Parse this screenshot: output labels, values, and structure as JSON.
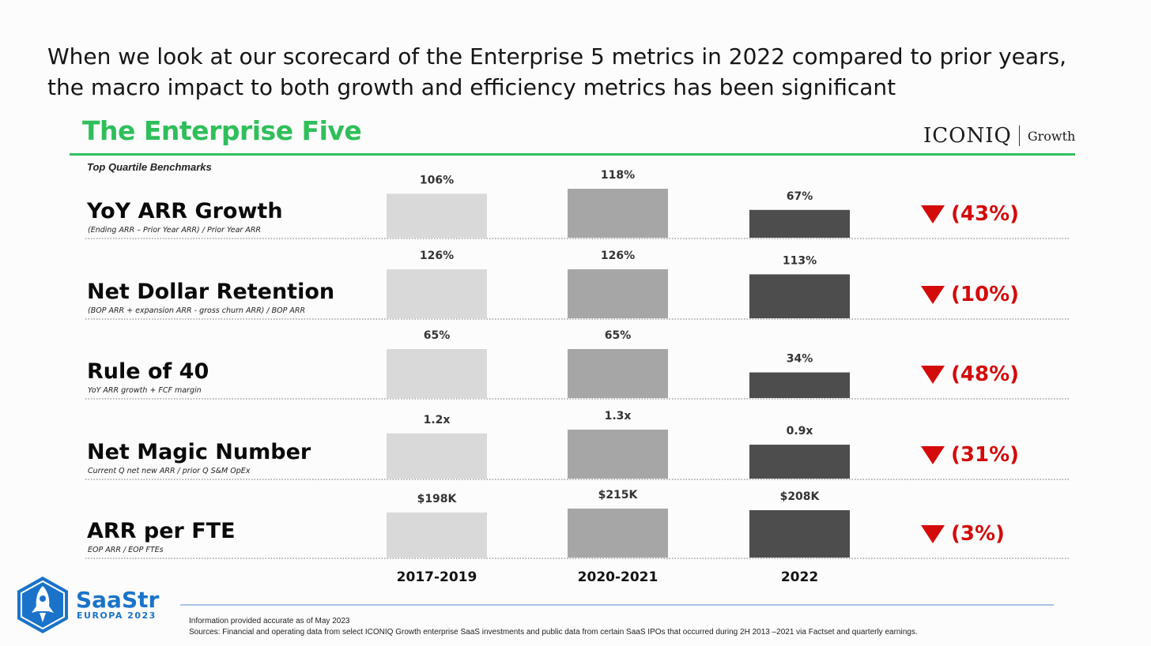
{
  "headline": {
    "line1": "When we look at our scorecard of the Enterprise 5 metrics in 2022 compared to prior years,",
    "line2": "the macro impact to both growth and efficiency metrics has been significant"
  },
  "section_title": "The Enterprise Five",
  "brand": {
    "name": "ICONIQ",
    "sub": "Growth"
  },
  "benchmark_label": "Top Quartile Benchmarks",
  "colors": {
    "title_green": "#2fbf5a",
    "period_colors": [
      "#d9d9d9",
      "#a6a6a6",
      "#4d4d4d"
    ],
    "change_red": "#d40b0b",
    "saastr_blue": "#1a73c9"
  },
  "chart_data": {
    "type": "bar",
    "title": "The Enterprise Five",
    "subtitle": "Top Quartile Benchmarks",
    "categories": [
      "2017-2019",
      "2020-2021",
      "2022"
    ],
    "metrics": [
      {
        "name": "YoY ARR Growth",
        "formula": "(Ending ARR – Prior Year ARR) / Prior Year ARR",
        "values": [
          106,
          118,
          67
        ],
        "labels": [
          "106%",
          "118%",
          "67%"
        ],
        "change": "(43%)"
      },
      {
        "name": "Net Dollar Retention",
        "formula": "(BOP ARR + expansion ARR - gross churn ARR) / BOP ARR",
        "values": [
          126,
          126,
          113
        ],
        "labels": [
          "126%",
          "126%",
          "113%"
        ],
        "change": "(10%)"
      },
      {
        "name": "Rule of 40",
        "formula": "YoY ARR growth + FCF margin",
        "values": [
          65,
          65,
          34
        ],
        "labels": [
          "65%",
          "65%",
          "34%"
        ],
        "change": "(48%)"
      },
      {
        "name": "Net Magic Number",
        "formula": "Current Q net new ARR / prior Q S&M OpEx",
        "values": [
          1.2,
          1.3,
          0.9
        ],
        "labels": [
          "1.2x",
          "1.3x",
          "0.9x"
        ],
        "change": "(31%)"
      },
      {
        "name": "ARR per FTE",
        "formula": "EOP ARR / EOP FTEs",
        "values": [
          198,
          215,
          208
        ],
        "labels": [
          "$198K",
          "$215K",
          "$208K"
        ],
        "change": "(3%)"
      }
    ]
  },
  "logo": {
    "name": "SaaStr",
    "sub": "EUROPA 2023"
  },
  "footnotes": {
    "line1": "Information provided accurate as of May 2023",
    "line2": "Sources: Financial and operating data from select ICONIQ Growth enterprise SaaS investments and public data from certain SaaS IPOs that occurred during 2H 2013 –2021 via Factset and quarterly earnings."
  }
}
